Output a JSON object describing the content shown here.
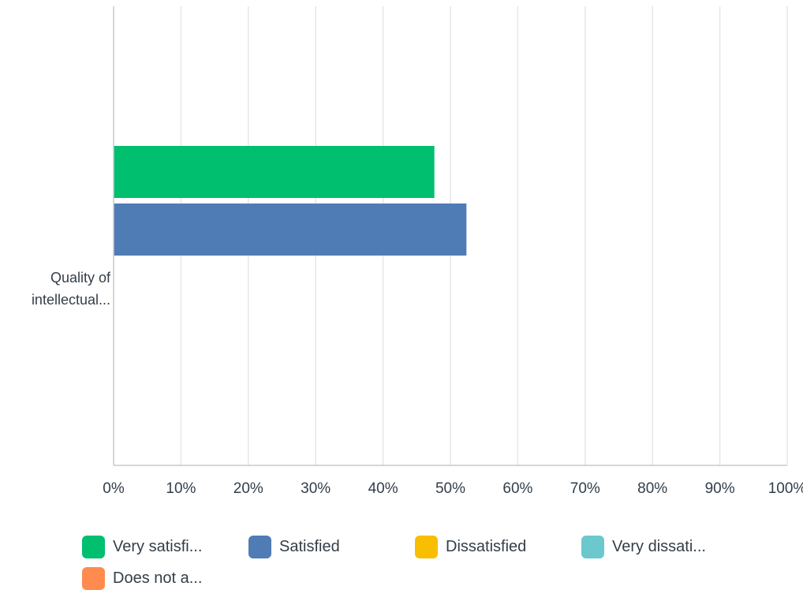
{
  "chart_data": {
    "type": "bar",
    "orientation": "horizontal",
    "categories": [
      "Quality of intellectual..."
    ],
    "category_label_lines": [
      [
        "Quality of",
        "intellectual..."
      ]
    ],
    "series": [
      {
        "name": "Very satisfi...",
        "color": "#00bf6f",
        "values": [
          47.62
        ]
      },
      {
        "name": "Satisfied",
        "color": "#507cb6",
        "values": [
          52.38
        ]
      },
      {
        "name": "Dissatisfied",
        "color": "#f9be00",
        "values": [
          0
        ]
      },
      {
        "name": "Very dissati...",
        "color": "#6bc8cd",
        "values": [
          0
        ]
      },
      {
        "name": "Does not a...",
        "color": "#ff8b4f",
        "values": [
          0
        ]
      }
    ],
    "xlim": [
      0,
      100
    ],
    "xticks": [
      0,
      10,
      20,
      30,
      40,
      50,
      60,
      70,
      80,
      90,
      100
    ],
    "tick_suffix": "%",
    "grid": true,
    "legend_position": "bottom"
  }
}
